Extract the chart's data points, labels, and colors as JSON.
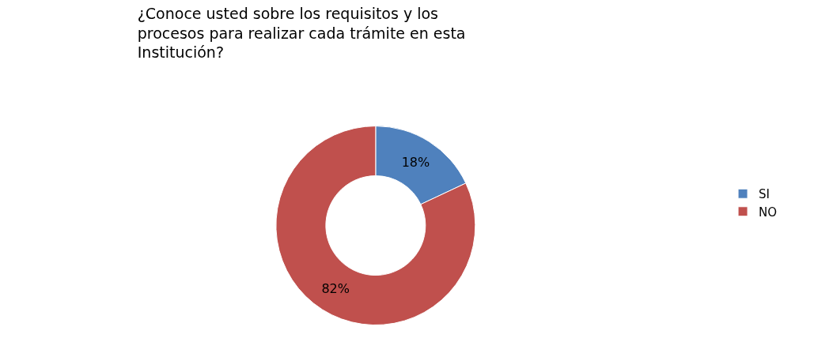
{
  "chart_data": {
    "type": "donut",
    "title": "¿Conoce usted sobre los requisitos y los\nprocesos para realizar cada trámite en esta\nInstitución?",
    "categories": [
      "SI",
      "NO"
    ],
    "values": [
      18,
      82
    ],
    "colors": [
      "#4f81bd",
      "#c0504d"
    ],
    "value_labels": [
      "18%",
      "82%"
    ],
    "legend": "right"
  }
}
